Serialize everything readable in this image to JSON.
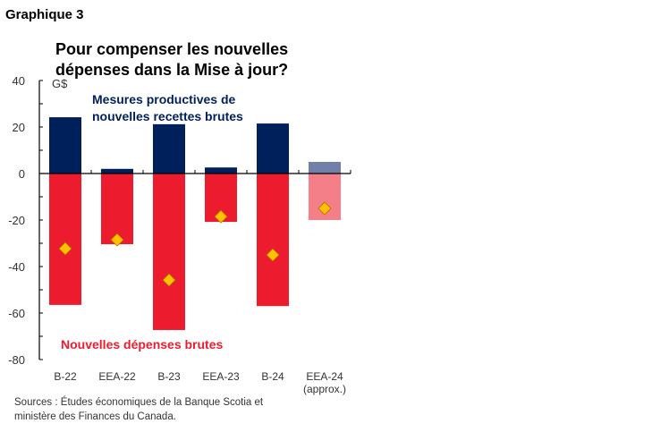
{
  "label": "Graphique 3",
  "source": [
    "Sources : Études économiques de la Banque Scotia et",
    "ministère des Finances du Canada."
  ],
  "chart_data": {
    "type": "bar",
    "title": [
      "Pour compenser les nouvelles",
      "dépenses dans la Mise à jour?"
    ],
    "unit": "G$",
    "categories": [
      [
        "B-22"
      ],
      [
        "EEA-22"
      ],
      [
        "B-23"
      ],
      [
        "EEA-23"
      ],
      [
        "B-24"
      ],
      [
        "EEA-24",
        "(approx.)"
      ]
    ],
    "ylim": [
      -80,
      40
    ],
    "yticks": [
      40,
      20,
      0,
      -20,
      -40,
      -60,
      -80
    ],
    "series": [
      {
        "name": "Mesures productives de nouvelles recettes brutes",
        "label_lines": [
          "Mesures productives de",
          "nouvelles recettes brutes"
        ],
        "values": [
          24.2,
          2,
          21.2,
          2.6,
          21.5,
          5
        ],
        "color": "#00205b",
        "approx_color": "#7080a8"
      },
      {
        "name": "Nouvelles dépenses brutes",
        "values": [
          -56.5,
          -30.4,
          -67.3,
          -20.8,
          -57,
          -20
        ],
        "color": "#ec1c2e",
        "approx_color": "#f47f88"
      },
      {
        "type": "marker",
        "values": [
          -32.3,
          -28.5,
          -45.8,
          -18.5,
          -35,
          -15
        ],
        "color": "#ffc000"
      }
    ],
    "grid": false
  }
}
